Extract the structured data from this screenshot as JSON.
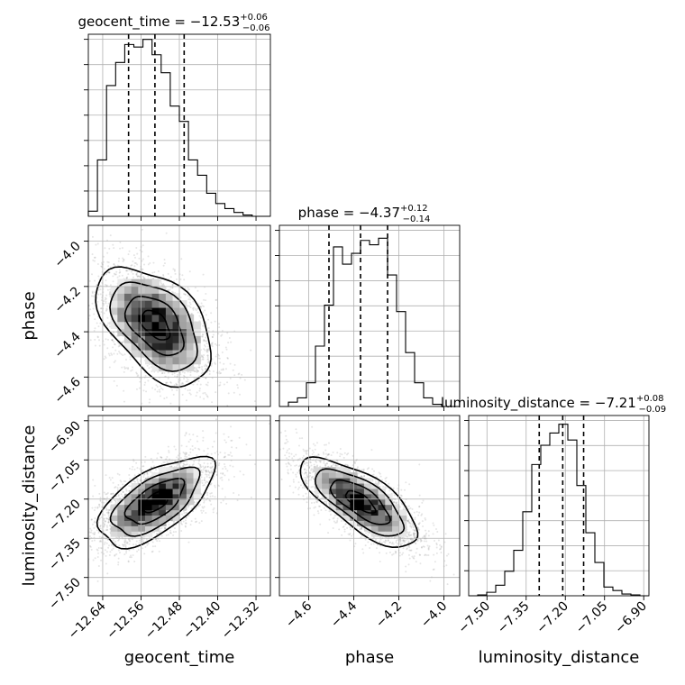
{
  "chart_data": {
    "type": "corner",
    "parameters": [
      {
        "name": "geocent_time",
        "label": "geocent_time",
        "range": [
          -12.67,
          -12.29
        ],
        "ticks": [
          -12.64,
          -12.56,
          -12.48,
          -12.4,
          -12.32
        ],
        "tick_labels": [
          "−12.64",
          "−12.56",
          "−12.48",
          "−12.40",
          "−12.32"
        ],
        "title": {
          "main": "geocent_time = −12.53",
          "upper": "+0.06",
          "lower": "−0.06"
        },
        "quantiles": [
          -12.586,
          -12.531,
          -12.47
        ],
        "hist_edges": [
          -12.67,
          -12.651,
          -12.632,
          -12.613,
          -12.594,
          -12.575,
          -12.556,
          -12.537,
          -12.518,
          -12.499,
          -12.48,
          -12.461,
          -12.442,
          -12.423,
          -12.404,
          -12.385,
          -12.366,
          -12.347,
          -12.328,
          -12.309,
          -12.29
        ],
        "hist_counts": [
          0.2,
          2.2,
          5.1,
          6.0,
          6.7,
          6.6,
          6.9,
          6.3,
          5.6,
          4.3,
          3.7,
          2.2,
          1.6,
          0.9,
          0.5,
          0.3,
          0.15,
          0.05,
          0.0,
          0.0
        ],
        "hist_ymax": 7.1
      },
      {
        "name": "phase",
        "label": "phase",
        "range": [
          -4.73,
          -3.93
        ],
        "ticks": [
          -4.6,
          -4.4,
          -4.2,
          -4.0
        ],
        "tick_labels": [
          "−4.6",
          "−4.4",
          "−4.2",
          "−4.0"
        ],
        "title": {
          "main": "phase = −4.37",
          "upper": "+0.12",
          "lower": "−0.14"
        },
        "quantiles": [
          -4.51,
          -4.37,
          -4.25
        ],
        "hist_edges": [
          -4.73,
          -4.69,
          -4.65,
          -4.61,
          -4.57,
          -4.53,
          -4.49,
          -4.45,
          -4.41,
          -4.37,
          -4.33,
          -4.29,
          -4.25,
          -4.21,
          -4.17,
          -4.13,
          -4.09,
          -4.05,
          -4.01,
          -3.97,
          -3.93
        ],
        "hist_counts": [
          0.0,
          0.2,
          0.4,
          1.1,
          2.8,
          4.7,
          7.4,
          6.6,
          7.1,
          7.7,
          7.5,
          7.8,
          6.1,
          4.4,
          2.5,
          1.1,
          0.4,
          0.1,
          0.0,
          0.0
        ],
        "hist_ymax": 8.4
      },
      {
        "name": "luminosity_distance",
        "label": "luminosity_distance",
        "range": [
          -7.57,
          -6.88
        ],
        "ticks": [
          -7.5,
          -7.35,
          -7.2,
          -7.05,
          -6.9
        ],
        "tick_labels": [
          "−7.50",
          "−7.35",
          "−7.20",
          "−7.05",
          "−6.90"
        ],
        "title": {
          "main": "luminosity_distance = −7.21",
          "upper": "+0.08",
          "lower": "−0.09"
        },
        "quantiles": [
          -7.3,
          -7.21,
          -7.13
        ],
        "hist_edges": [
          -7.57,
          -7.5355,
          -7.501,
          -7.4665,
          -7.432,
          -7.3975,
          -7.363,
          -7.3285,
          -7.294,
          -7.2595,
          -7.225,
          -7.1905,
          -7.156,
          -7.1215,
          -7.087,
          -7.0525,
          -7.018,
          -6.9835,
          -6.949,
          -6.9145,
          -6.88
        ],
        "hist_counts": [
          0.0,
          0.05,
          0.2,
          0.6,
          1.4,
          2.6,
          4.8,
          7.5,
          8.6,
          9.3,
          9.8,
          8.9,
          6.3,
          3.6,
          1.9,
          0.5,
          0.3,
          0.1,
          0.05,
          0.0
        ],
        "hist_ymax": 10.3
      }
    ],
    "pairs": [
      {
        "x": "geocent_time",
        "y": "phase",
        "mean": [
          -12.53,
          -4.37
        ],
        "std": [
          0.06,
          0.13
        ],
        "corr": -0.48
      },
      {
        "x": "geocent_time",
        "y": "luminosity_distance",
        "mean": [
          -12.53,
          -7.21
        ],
        "std": [
          0.06,
          0.085
        ],
        "corr": 0.62
      },
      {
        "x": "phase",
        "y": "luminosity_distance",
        "mean": [
          -4.37,
          -7.21
        ],
        "std": [
          0.13,
          0.085
        ],
        "corr": -0.72
      }
    ],
    "grid": true
  }
}
